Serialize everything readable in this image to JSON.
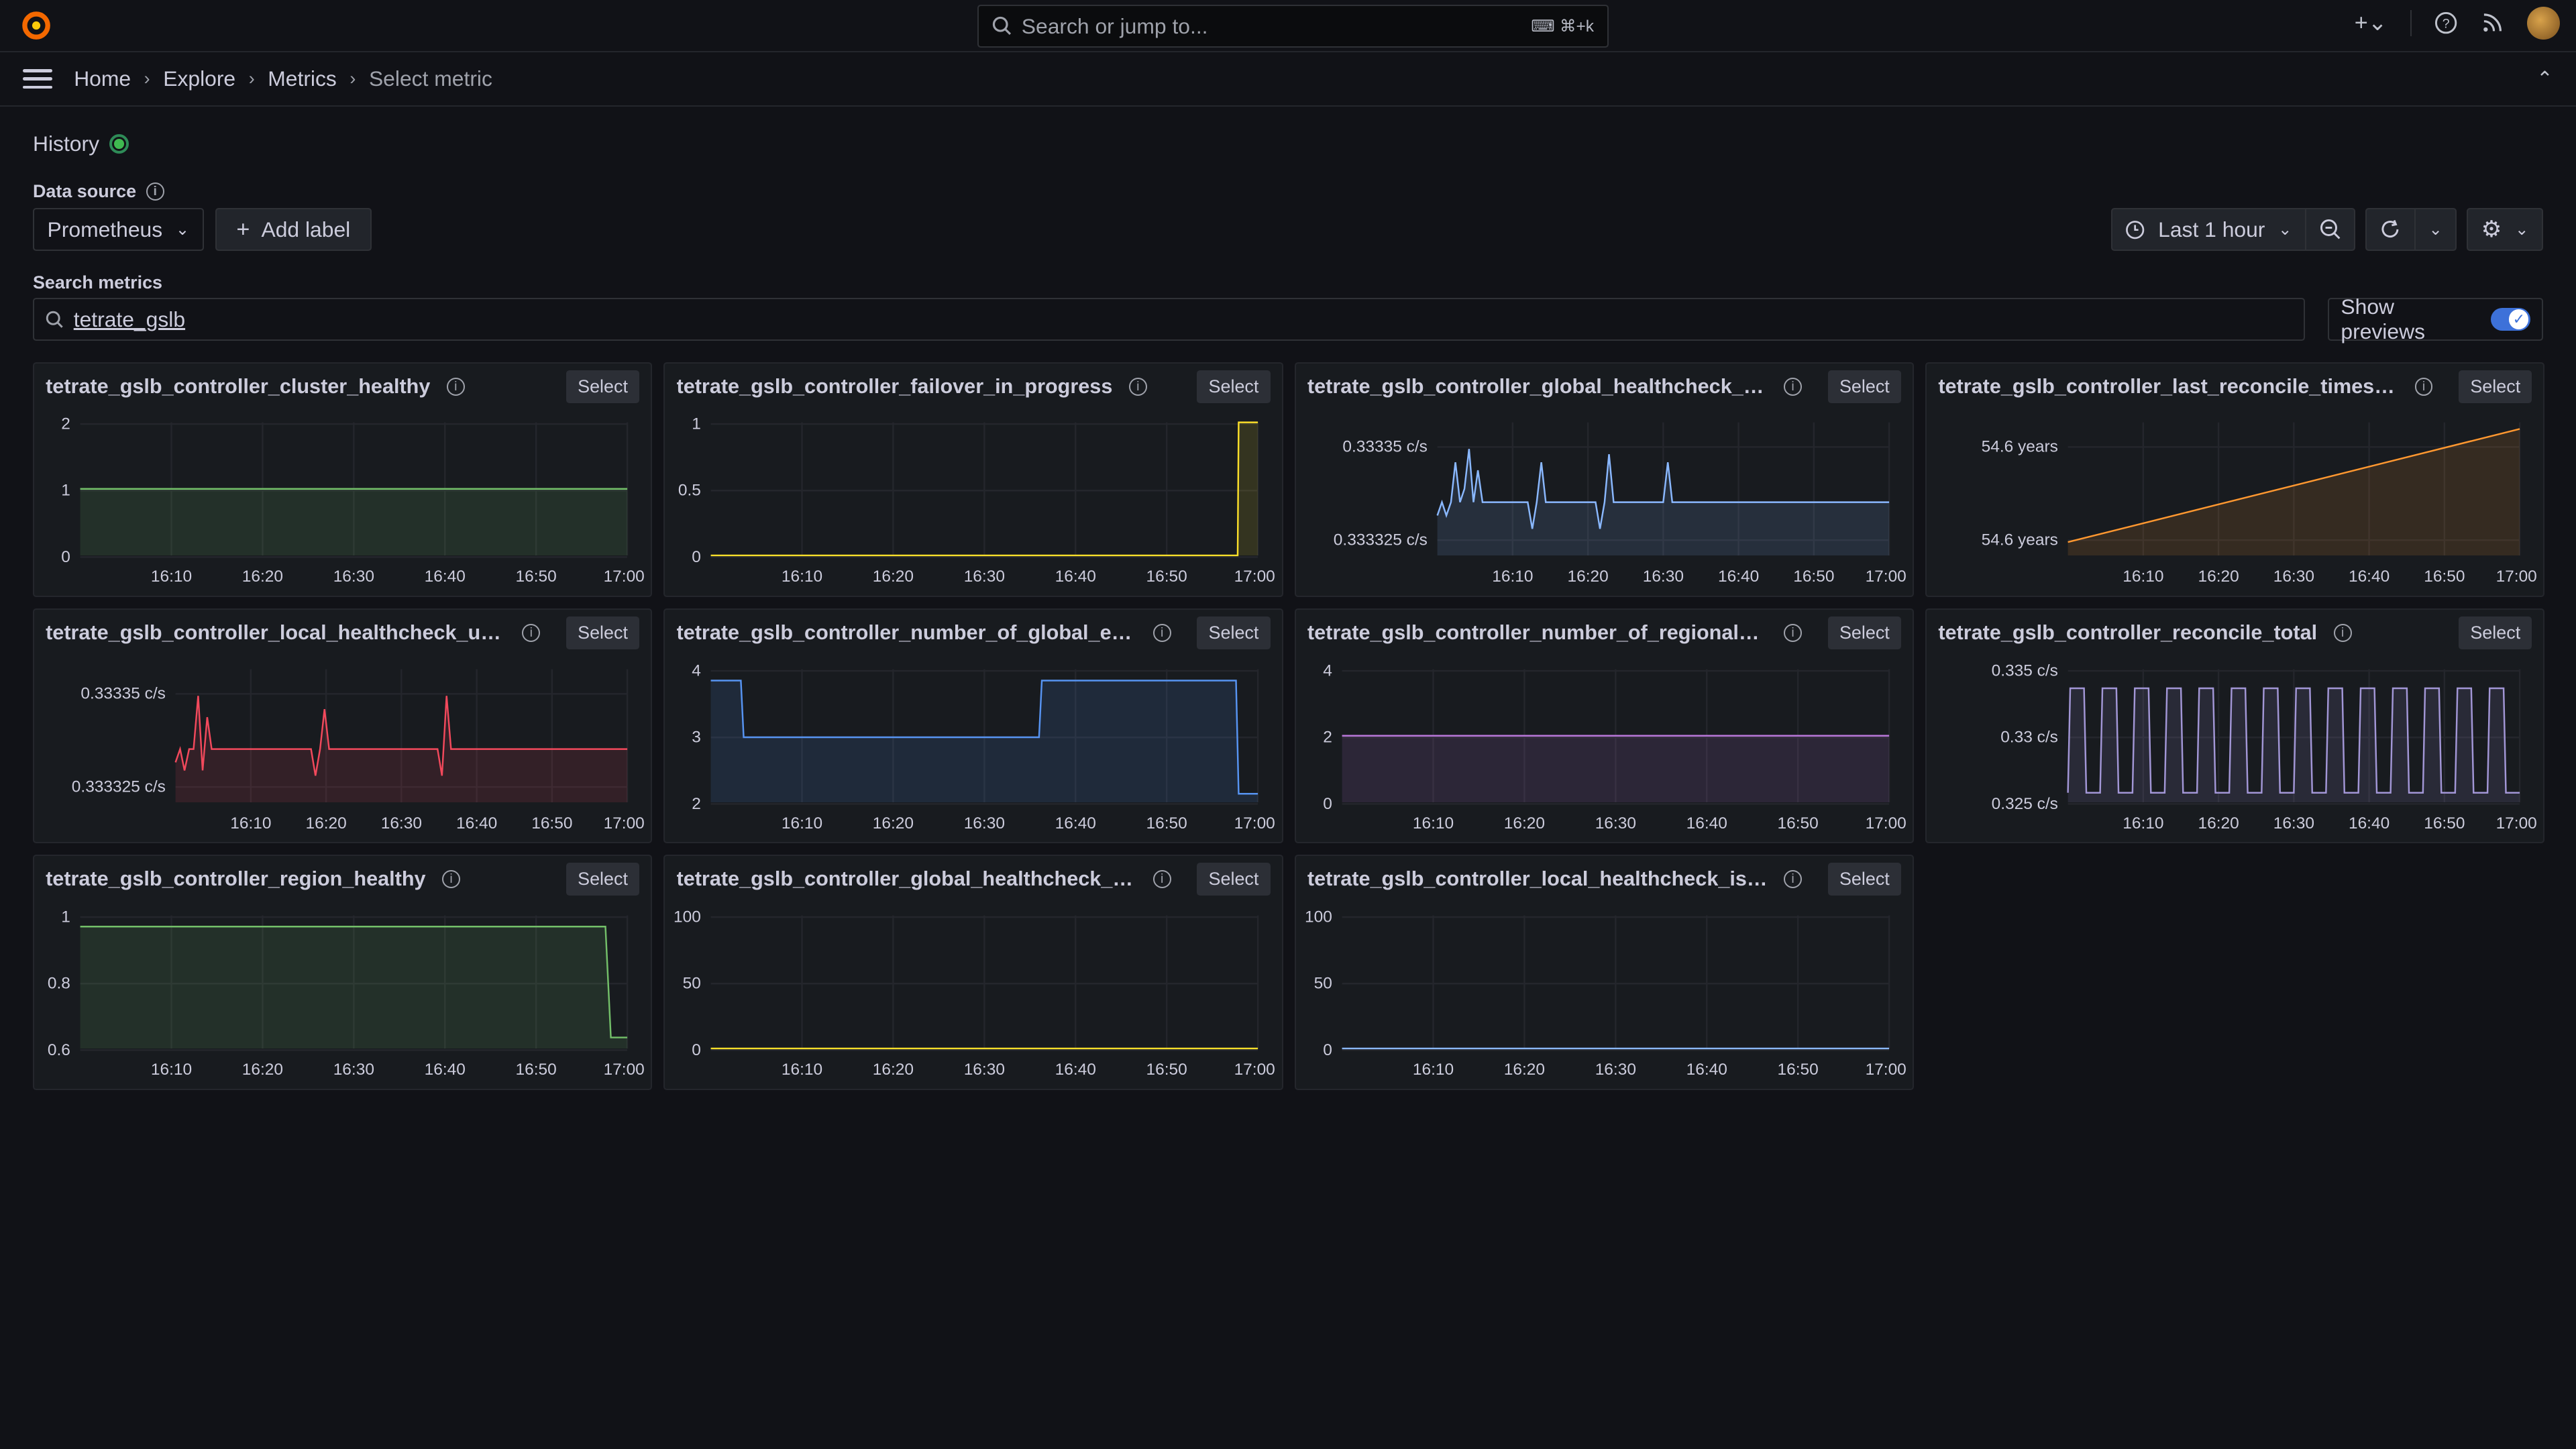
{
  "topbar": {
    "search_placeholder": "Search or jump to...",
    "search_shortcut": "⌘+k",
    "add_icon": "plus-icon",
    "help_icon": "help-icon",
    "news_icon": "rss-icon"
  },
  "breadcrumbs": [
    "Home",
    "Explore",
    "Metrics",
    "Select metric"
  ],
  "history_label": "History",
  "data_source_label": "Data source",
  "data_source_value": "Prometheus",
  "add_label_button": "Add label",
  "time_range": "Last 1 hour",
  "search_metrics_label": "Search metrics",
  "search_metrics_value": "tetrate_gslb",
  "show_previews_label": "Show previews",
  "show_previews_on": true,
  "select_label": "Select",
  "panels": [
    {
      "title": "tetrate_gslb_controller_cluster_healthy"
    },
    {
      "title": "tetrate_gslb_controller_failover_in_progress"
    },
    {
      "title": "tetrate_gslb_controller_global_healthcheck_upd..."
    },
    {
      "title": "tetrate_gslb_controller_last_reconcile_timestam..."
    },
    {
      "title": "tetrate_gslb_controller_local_healthcheck_updat..."
    },
    {
      "title": "tetrate_gslb_controller_number_of_global_endp..."
    },
    {
      "title": "tetrate_gslb_controller_number_of_regional_end..."
    },
    {
      "title": "tetrate_gslb_controller_reconcile_total"
    },
    {
      "title": "tetrate_gslb_controller_region_healthy"
    },
    {
      "title": "tetrate_gslb_controller_global_healthcheck_is_r..."
    },
    {
      "title": "tetrate_gslb_controller_local_healthcheck_is_re..."
    }
  ],
  "chart_data": [
    {
      "type": "area",
      "color": "#73bf69",
      "x": [
        "16:10",
        "16:20",
        "16:30",
        "16:40",
        "16:50",
        "17:00"
      ],
      "yticks": [
        "2",
        "1",
        "0"
      ],
      "ylim": [
        0,
        2
      ],
      "series": [
        {
          "x": [
            16.0,
            17.0
          ],
          "values": [
            1,
            1
          ]
        }
      ]
    },
    {
      "type": "area",
      "color": "#fade2a",
      "x": [
        "16:10",
        "16:20",
        "16:30",
        "16:40",
        "16:50",
        "17:00"
      ],
      "yticks": [
        "1",
        "0.5",
        "0"
      ],
      "ylim": [
        0,
        1
      ],
      "series": [
        {
          "x": [
            16.0,
            16.963,
            16.965,
            17.0
          ],
          "values": [
            0,
            0,
            1,
            1
          ]
        }
      ]
    },
    {
      "type": "area",
      "color": "#8ab8ff",
      "x": [
        "16:10",
        "16:20",
        "16:30",
        "16:40",
        "16:50",
        "17:00"
      ],
      "yticks": [
        "0.33335 c/s",
        "0.333325 c/s"
      ],
      "ylim": [
        0.33331,
        0.33336
      ],
      "series": [
        {
          "x": [
            16.0,
            16.01,
            16.02,
            16.03,
            16.04,
            16.05,
            16.06,
            16.07,
            16.08,
            16.09,
            16.1,
            16.2,
            16.21,
            16.22,
            16.23,
            16.24,
            16.35,
            16.36,
            16.37,
            16.38,
            16.39,
            16.5,
            16.51,
            16.52,
            16.53,
            16.54,
            17.0
          ],
          "values": [
            0.333325,
            0.33333,
            0.333325,
            0.33333,
            0.333345,
            0.33333,
            0.333335,
            0.33335,
            0.33333,
            0.333342,
            0.33333,
            0.33333,
            0.33332,
            0.33333,
            0.333345,
            0.33333,
            0.33333,
            0.33332,
            0.33333,
            0.333348,
            0.33333,
            0.33333,
            0.333345,
            0.33333,
            0.33333,
            0.33333,
            0.33333
          ]
        }
      ]
    },
    {
      "type": "area",
      "color": "#ff9830",
      "x": [
        "16:10",
        "16:20",
        "16:30",
        "16:40",
        "16:50",
        "17:00"
      ],
      "yticks": [
        "54.6 years",
        "54.6 years"
      ],
      "ylim": [
        0,
        1
      ],
      "series": [
        {
          "x": [
            16.0,
            17.0
          ],
          "values": [
            0.1,
            0.95
          ]
        }
      ]
    },
    {
      "type": "area",
      "color": "#f2495c",
      "x": [
        "16:10",
        "16:20",
        "16:30",
        "16:40",
        "16:50",
        "17:00"
      ],
      "yticks": [
        "0.33335 c/s",
        "0.333325 c/s"
      ],
      "ylim": [
        0.33331,
        0.33336
      ],
      "series": [
        {
          "x": [
            16.0,
            16.01,
            16.02,
            16.03,
            16.04,
            16.05,
            16.06,
            16.07,
            16.08,
            16.1,
            16.3,
            16.31,
            16.32,
            16.33,
            16.34,
            16.58,
            16.59,
            16.6,
            16.61,
            16.62,
            17.0
          ],
          "values": [
            0.333325,
            0.33333,
            0.333322,
            0.33333,
            0.33333,
            0.33335,
            0.333322,
            0.333342,
            0.33333,
            0.33333,
            0.33333,
            0.33332,
            0.33333,
            0.333345,
            0.33333,
            0.33333,
            0.33332,
            0.33335,
            0.33333,
            0.33333,
            0.33333
          ]
        }
      ]
    },
    {
      "type": "area",
      "color": "#5794f2",
      "x": [
        "16:10",
        "16:20",
        "16:30",
        "16:40",
        "16:50",
        "17:00"
      ],
      "yticks": [
        "4",
        "3",
        "2"
      ],
      "ylim": [
        1.85,
        4.2
      ],
      "series": [
        {
          "x": [
            16.0,
            16.055,
            16.06,
            16.6,
            16.605,
            16.96,
            16.965,
            17.0
          ],
          "values": [
            4,
            4,
            3,
            3,
            4,
            4,
            2,
            2
          ]
        }
      ]
    },
    {
      "type": "area",
      "color": "#b877d9",
      "x": [
        "16:10",
        "16:20",
        "16:30",
        "16:40",
        "16:50",
        "17:00"
      ],
      "yticks": [
        "4",
        "2",
        "0"
      ],
      "ylim": [
        0,
        4
      ],
      "series": [
        {
          "x": [
            16.0,
            17.0
          ],
          "values": [
            2,
            2
          ]
        }
      ]
    },
    {
      "type": "area",
      "color": "#a296d6",
      "x": [
        "16:10",
        "16:20",
        "16:30",
        "16:40",
        "16:50",
        "17:00"
      ],
      "yticks": [
        "0.335 c/s",
        "0.33 c/s",
        "0.325 c/s"
      ],
      "ylim": [
        0.323,
        0.337
      ],
      "series": [
        {
          "x": [],
          "values": [],
          "pattern": "square-wave",
          "high": 0.335,
          "low": 0.324,
          "cycles": 14
        }
      ]
    },
    {
      "type": "area",
      "color": "#73bf69",
      "x": [
        "16:10",
        "16:20",
        "16:30",
        "16:40",
        "16:50",
        "17:00"
      ],
      "yticks": [
        "1",
        "0.8",
        "0.6"
      ],
      "ylim": [
        0.45,
        1.05
      ],
      "series": [
        {
          "x": [
            16.0,
            16.96,
            16.97,
            17.0
          ],
          "values": [
            1,
            1,
            0.5,
            0.5
          ]
        }
      ]
    },
    {
      "type": "line",
      "color": "#fade2a",
      "x": [
        "16:10",
        "16:20",
        "16:30",
        "16:40",
        "16:50",
        "17:00"
      ],
      "yticks": [
        "100",
        "50",
        "0"
      ],
      "ylim": [
        0,
        100
      ],
      "series": [
        {
          "x": [
            16.0,
            17.0
          ],
          "values": [
            0,
            0
          ]
        }
      ]
    },
    {
      "type": "line",
      "color": "#8ab8ff",
      "x": [
        "16:10",
        "16:20",
        "16:30",
        "16:40",
        "16:50",
        "17:00"
      ],
      "yticks": [
        "100",
        "50",
        "0"
      ],
      "ylim": [
        0,
        100
      ],
      "series": [
        {
          "x": [
            16.0,
            17.0
          ],
          "values": [
            0,
            0
          ]
        }
      ]
    }
  ]
}
